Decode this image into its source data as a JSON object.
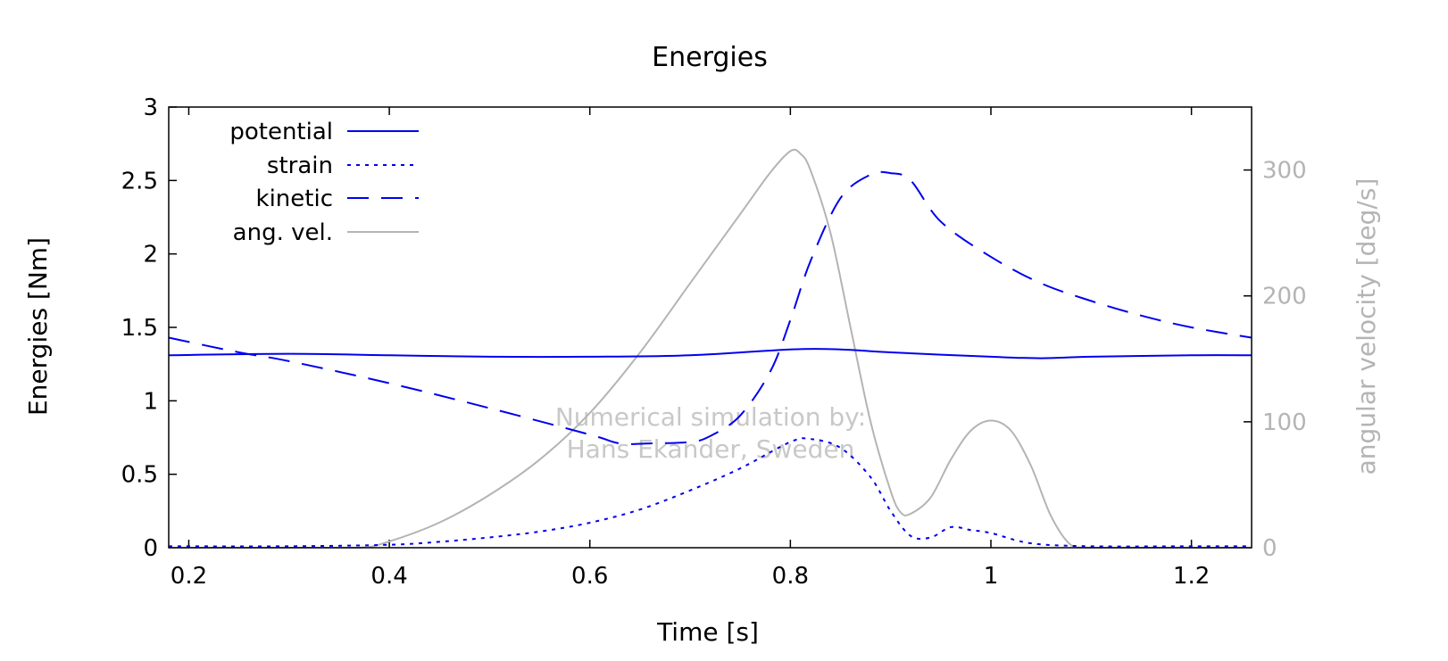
{
  "chart_data": {
    "type": "line",
    "title": "Energies",
    "xlabel": "Time [s]",
    "ylabel": "Energies [Nm]",
    "y2label": "angular velocity [deg/s]",
    "xlim": [
      0.18,
      1.26
    ],
    "ylim": [
      0,
      3
    ],
    "y2lim": [
      0,
      350
    ],
    "xticks": [
      0.2,
      0.4,
      0.6,
      0.8,
      1,
      1.2
    ],
    "xtick_labels": [
      "0.2",
      "0.4",
      "0.6",
      "0.8",
      "1",
      "1.2"
    ],
    "yticks": [
      0,
      0.5,
      1,
      1.5,
      2,
      2.5,
      3
    ],
    "ytick_labels": [
      "0",
      "0.5",
      "1",
      "1.5",
      "2",
      "2.5",
      "3"
    ],
    "y2ticks": [
      0,
      100,
      200,
      300
    ],
    "y2tick_labels": [
      "0",
      "100",
      "200",
      "300"
    ],
    "grid": false,
    "legend_position": "top-left",
    "watermark": [
      "Numerical simulation by:",
      "Hans Ekander, Sweden"
    ],
    "colors": {
      "energy": "#0000ee",
      "angular": "#b4b4b4",
      "watermark": "#c8c8c8"
    },
    "series": [
      {
        "name": "potential",
        "axis": "left",
        "dash": "solid",
        "x": [
          0.18,
          0.3,
          0.4,
          0.5,
          0.6,
          0.7,
          0.8,
          0.85,
          0.9,
          1.0,
          1.05,
          1.1,
          1.2,
          1.26
        ],
        "y": [
          1.31,
          1.32,
          1.31,
          1.3,
          1.3,
          1.31,
          1.35,
          1.35,
          1.33,
          1.3,
          1.29,
          1.3,
          1.31,
          1.31
        ]
      },
      {
        "name": "strain",
        "axis": "left",
        "dash": "dotted",
        "x": [
          0.18,
          0.3,
          0.4,
          0.45,
          0.5,
          0.55,
          0.6,
          0.65,
          0.7,
          0.75,
          0.8,
          0.82,
          0.85,
          0.88,
          0.9,
          0.92,
          0.94,
          0.96,
          0.98,
          1.0,
          1.04,
          1.1,
          1.2,
          1.26
        ],
        "y": [
          0.01,
          0.01,
          0.02,
          0.04,
          0.07,
          0.11,
          0.17,
          0.26,
          0.39,
          0.54,
          0.72,
          0.74,
          0.68,
          0.48,
          0.25,
          0.08,
          0.07,
          0.14,
          0.12,
          0.1,
          0.03,
          0.01,
          0.01,
          0.01
        ]
      },
      {
        "name": "kinetic",
        "axis": "left",
        "dash": "dashed",
        "x": [
          0.18,
          0.25,
          0.3,
          0.4,
          0.5,
          0.6,
          0.63,
          0.66,
          0.7,
          0.72,
          0.75,
          0.78,
          0.8,
          0.82,
          0.85,
          0.88,
          0.9,
          0.92,
          0.95,
          1.0,
          1.05,
          1.1,
          1.15,
          1.2,
          1.26
        ],
        "y": [
          1.43,
          1.33,
          1.27,
          1.12,
          0.95,
          0.77,
          0.71,
          0.71,
          0.72,
          0.76,
          0.9,
          1.2,
          1.55,
          1.95,
          2.38,
          2.54,
          2.55,
          2.5,
          2.22,
          1.98,
          1.8,
          1.68,
          1.58,
          1.5,
          1.43
        ]
      },
      {
        "name": "ang. vel.",
        "axis": "right",
        "dash": "solid",
        "x": [
          0.18,
          0.3,
          0.37,
          0.4,
          0.45,
          0.5,
          0.55,
          0.6,
          0.65,
          0.7,
          0.75,
          0.78,
          0.8,
          0.81,
          0.82,
          0.84,
          0.86,
          0.88,
          0.9,
          0.91,
          0.92,
          0.94,
          0.96,
          0.98,
          1.0,
          1.02,
          1.04,
          1.06,
          1.08,
          1.1,
          1.2,
          1.26
        ],
        "y": [
          0,
          0,
          0,
          5,
          20,
          42,
          70,
          107,
          155,
          210,
          265,
          298,
          315,
          313,
          300,
          250,
          175,
          100,
          45,
          28,
          27,
          40,
          70,
          93,
          101,
          93,
          65,
          25,
          2,
          0,
          0,
          0
        ]
      }
    ]
  }
}
